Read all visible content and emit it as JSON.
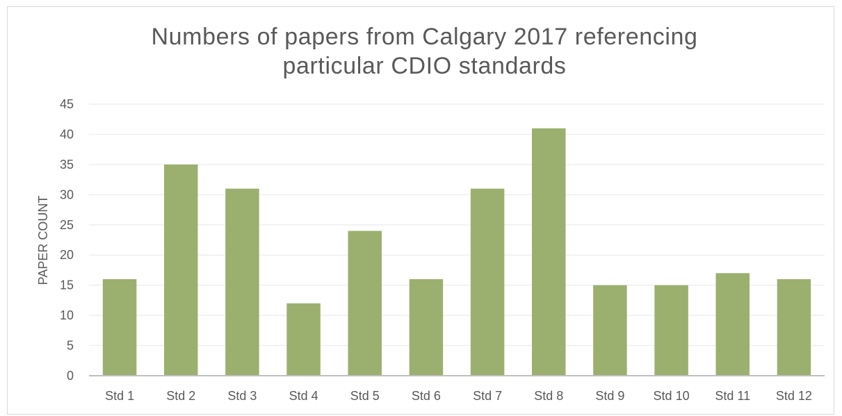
{
  "chart_data": {
    "type": "bar",
    "title_lines": [
      "Numbers of papers from Calgary 2017 referencing",
      "particular CDIO standards"
    ],
    "xlabel": "",
    "ylabel": "PAPER COUNT",
    "categories": [
      "Std 1",
      "Std 2",
      "Std 3",
      "Std 4",
      "Std 5",
      "Std 6",
      "Std 7",
      "Std 8",
      "Std 9",
      "Std 10",
      "Std 11",
      "Std 12"
    ],
    "values": [
      16,
      35,
      31,
      12,
      24,
      16,
      31,
      41,
      15,
      15,
      17,
      16
    ],
    "ylim": [
      0,
      45
    ],
    "yticks": [
      0,
      5,
      10,
      15,
      20,
      25,
      30,
      35,
      40,
      45
    ],
    "grid": true,
    "legend": "none",
    "bar_color": "#9bb06e",
    "grid_color": "#efefef",
    "axis_color": "#bfbfbf"
  }
}
